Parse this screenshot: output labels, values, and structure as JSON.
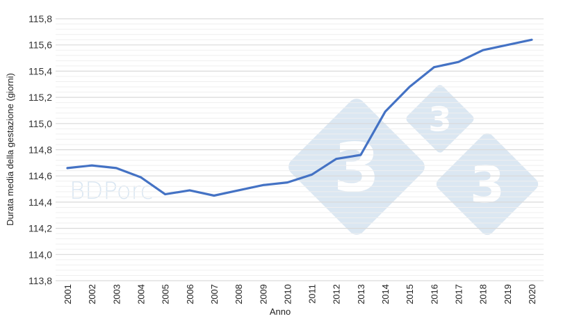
{
  "chart_data": {
    "type": "line",
    "title": "",
    "xlabel": "Anno",
    "ylabel": "Durata media della gestazione (giorni)",
    "ylim": [
      113.8,
      115.8
    ],
    "yticks": [
      "113,8",
      "114,0",
      "114,2",
      "114,4",
      "114,6",
      "114,8",
      "115,0",
      "115,2",
      "115,4",
      "115,6",
      "115,8"
    ],
    "grid": "horizontal major + minor",
    "legend": "none",
    "categories": [
      "2001",
      "2002",
      "2003",
      "2004",
      "2005",
      "2006",
      "2007",
      "2008",
      "2009",
      "2010",
      "2011",
      "2012",
      "2013",
      "2014",
      "2015",
      "2016",
      "2017",
      "2018",
      "2019",
      "2020"
    ],
    "series": [
      {
        "name": "Durata media della gestazione",
        "color": "#4472c4",
        "values": [
          114.66,
          114.68,
          114.66,
          114.59,
          114.46,
          114.49,
          114.45,
          114.49,
          114.53,
          114.55,
          114.61,
          114.73,
          114.76,
          115.09,
          115.28,
          115.43,
          115.47,
          115.56,
          115.6,
          115.64
        ]
      }
    ]
  },
  "watermark": {
    "text": "BDPorc",
    "logo_digit": "3",
    "color": "#dbe7f2"
  }
}
